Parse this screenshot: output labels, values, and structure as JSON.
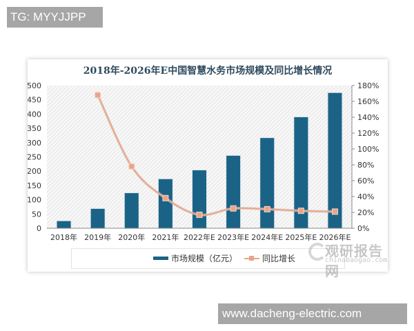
{
  "overlay": {
    "top_badge": "TG: MYYJJPP",
    "bottom_badge": "www.dacheng-electric.com"
  },
  "watermark": {
    "cn": "观研报告网",
    "en": "chinabaogao.com"
  },
  "colors": {
    "bar": "#1b6386",
    "line": "#e8a58a",
    "title": "#2f4a5e",
    "axis_text": "#333333"
  },
  "chart_data": {
    "type": "bar",
    "title": "2018年-2026年E中国智慧水务市场规模及同比增长情况",
    "xlabel": "",
    "ylabel": "",
    "categories": [
      "2018年",
      "2019年",
      "2020年",
      "2021年",
      "2022年E",
      "2023年E",
      "2024年E",
      "2025年E",
      "2026年E"
    ],
    "series": [
      {
        "name": "市场规模（亿元）",
        "type": "bar",
        "axis": "left",
        "values": [
          25,
          68,
          123,
          172,
          203,
          254,
          316,
          389,
          474
        ]
      },
      {
        "name": "同比增长",
        "type": "line",
        "axis": "right",
        "unit": "%",
        "values": [
          null,
          168,
          78,
          38,
          17,
          25,
          24,
          22,
          21
        ]
      }
    ],
    "ylim": [
      0,
      500
    ],
    "y_ticks": [
      "0",
      "50",
      "100",
      "150",
      "200",
      "250",
      "300",
      "350",
      "400",
      "450",
      "500"
    ],
    "y2lim": [
      0,
      180
    ],
    "y2_ticks": [
      "0%",
      "20%",
      "40%",
      "60%",
      "80%",
      "100%",
      "120%",
      "140%",
      "160%",
      "180%"
    ],
    "grid": false,
    "legend_position": "bottom",
    "legend": [
      "市场规模（亿元）",
      "同比增长"
    ]
  }
}
